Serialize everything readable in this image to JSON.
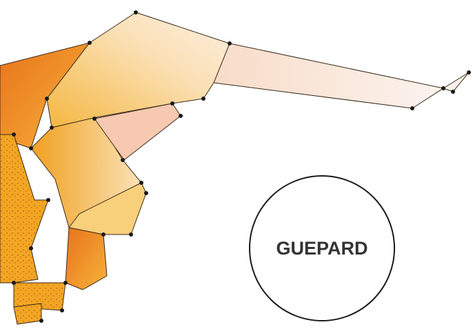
{
  "label": "GUEPARD"
}
